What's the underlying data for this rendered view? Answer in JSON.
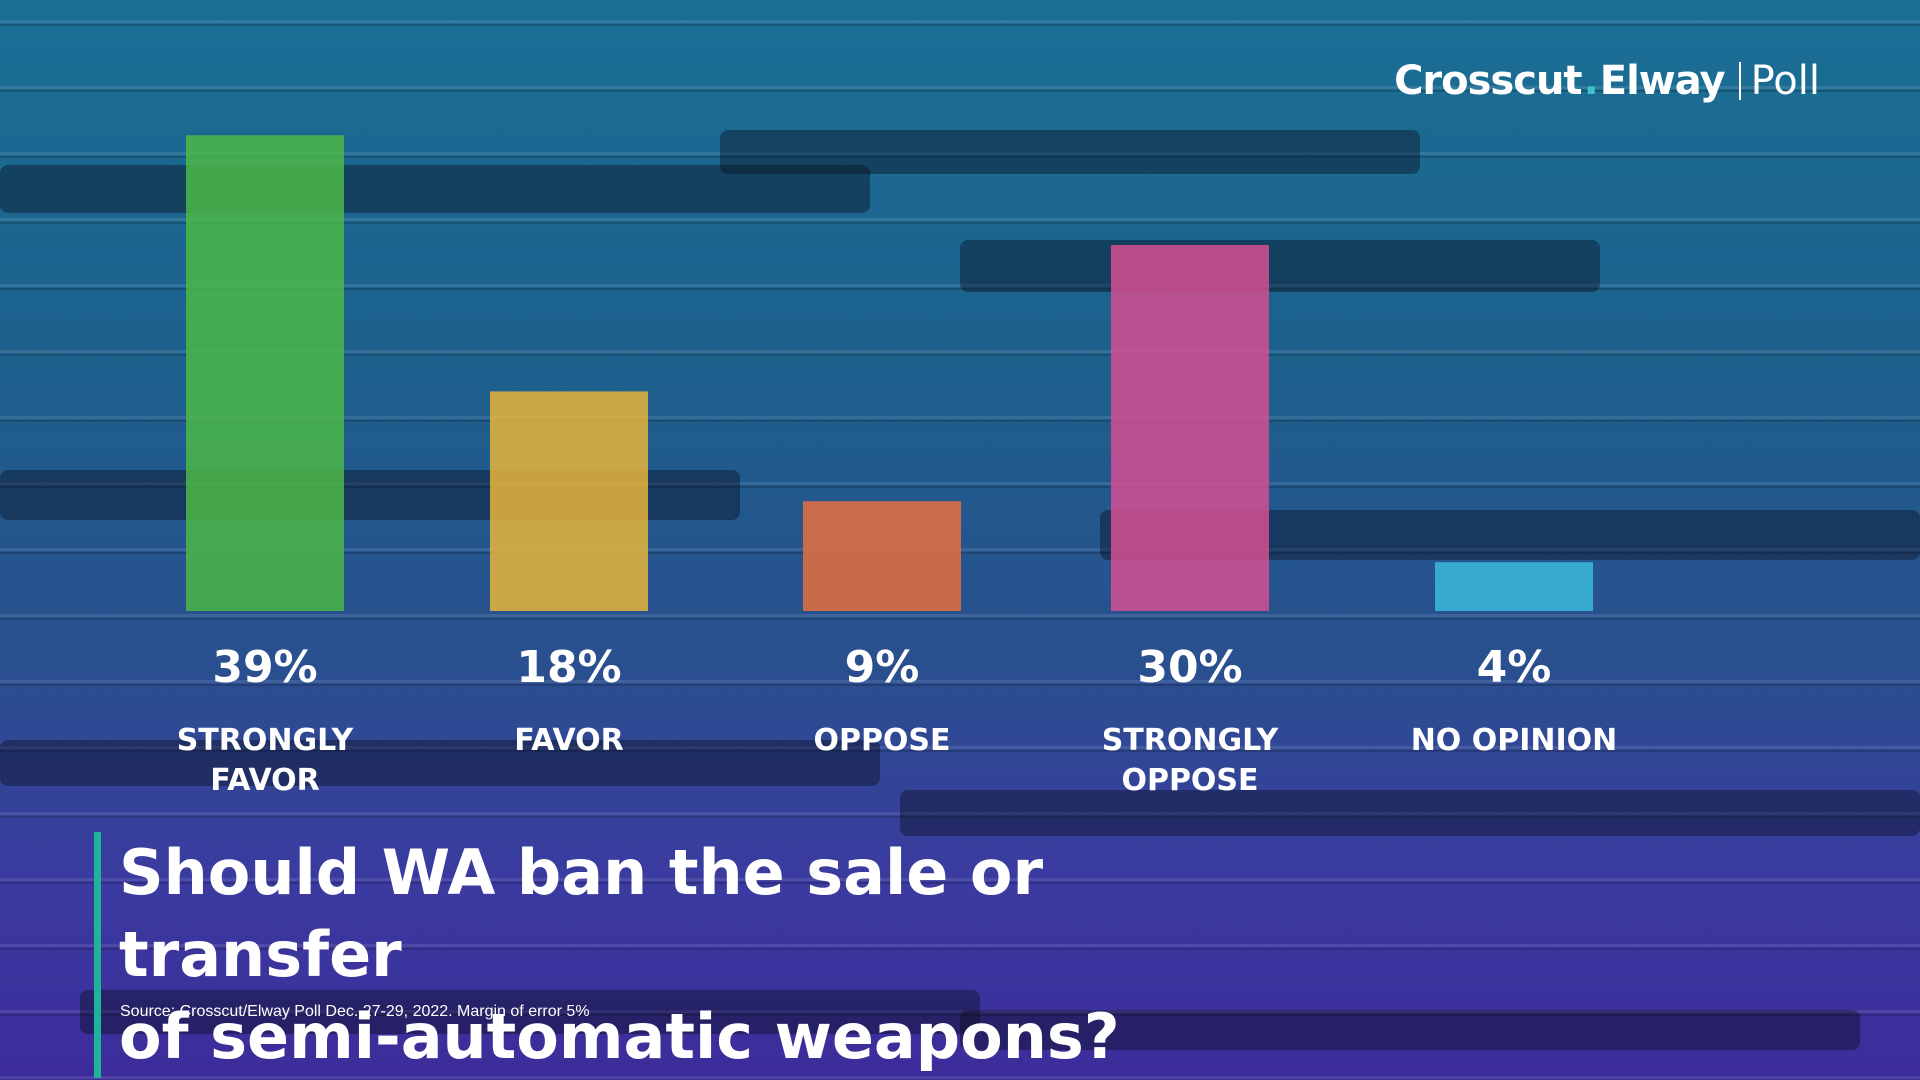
{
  "brand": {
    "name_part1": "Crosscut",
    "dot": ".",
    "name_part2": "Elway",
    "product": "Poll",
    "accent_color": "#3fc2c9"
  },
  "question": {
    "line1": "Should WA ban the sale or transfer",
    "line2": "of semi-automatic weapons?",
    "accent_color": "#1fb49a"
  },
  "source": "Source: Crosscut/Elway Poll Dec. 27-29, 2022. Margin of error 5%",
  "chart_data": {
    "type": "bar",
    "title": "Should WA ban the sale or transfer of semi-automatic weapons?",
    "categories": [
      [
        "STRONGLY",
        "FAVOR"
      ],
      [
        "FAVOR"
      ],
      [
        "OPPOSE"
      ],
      [
        "STRONGLY",
        "OPPOSE"
      ],
      [
        "NO OPINION"
      ]
    ],
    "values": [
      39,
      18,
      9,
      30,
      4
    ],
    "value_labels": [
      "39%",
      "18%",
      "9%",
      "30%",
      "4%"
    ],
    "colors": [
      "#4cb948",
      "#e8b53a",
      "#e5703f",
      "#d54f92",
      "#3bbbdc"
    ],
    "ylim": [
      0,
      40
    ],
    "grid": false,
    "legend": "none"
  }
}
